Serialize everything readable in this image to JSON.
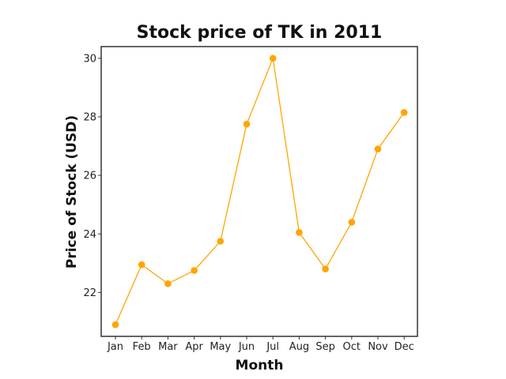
{
  "chart_data": {
    "type": "line",
    "title": "Stock price of TK in 2011",
    "xlabel": "Month",
    "ylabel": "Price of Stock (USD)",
    "categories": [
      "Jan",
      "Feb",
      "Mar",
      "Apr",
      "May",
      "Jun",
      "Jul",
      "Aug",
      "Sep",
      "Oct",
      "Nov",
      "Dec"
    ],
    "series": [
      {
        "values": [
          20.9,
          22.95,
          22.3,
          22.75,
          23.75,
          27.75,
          30.0,
          24.05,
          22.8,
          24.4,
          26.9,
          28.15
        ],
        "color": "#ffa500"
      }
    ],
    "yticks": [
      22,
      24,
      26,
      28,
      30
    ],
    "ylim": [
      20.5,
      30.4
    ],
    "grid": false,
    "legend": "none"
  }
}
